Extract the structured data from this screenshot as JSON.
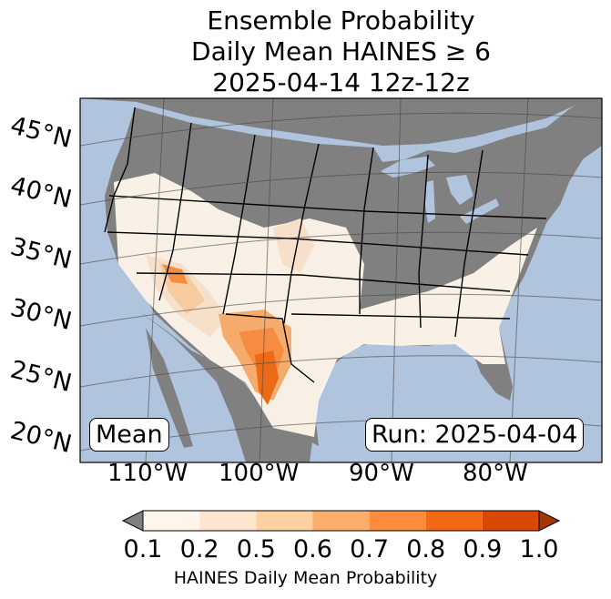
{
  "title": {
    "line1": "Ensemble Probability",
    "line2": "Daily Mean HAINES ≥ 6",
    "line3": "2025-04-14 12z-12z"
  },
  "map": {
    "projection": "lambert-conformal",
    "region": "CONUS",
    "colors": {
      "ocean": "#b0c4de",
      "land_no_data": "#808080",
      "state_lines": "#000000"
    },
    "lat_labels": [
      "45°N",
      "40°N",
      "35°N",
      "30°N",
      "25°N",
      "20°N"
    ],
    "lon_labels": [
      "110°W",
      "100°W",
      "90°W",
      "80°W"
    ],
    "mean_label": "Mean",
    "run_label": "Run: 2025-04-04"
  },
  "colorbar": {
    "ticks": [
      "0.1",
      "0.2",
      "0.5",
      "0.6",
      "0.7",
      "0.8",
      "0.9",
      "1.0"
    ],
    "colors": [
      "#fff5eb",
      "#fee6ce",
      "#fdd0a2",
      "#fdae6b",
      "#fd8d3c",
      "#f16913",
      "#d94801",
      "#a63603"
    ],
    "under_color": "#808080",
    "label": "HAINES Daily Mean Probability"
  }
}
